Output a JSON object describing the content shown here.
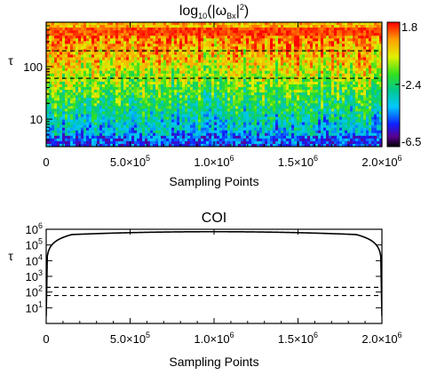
{
  "chart_data": [
    {
      "type": "heatmap",
      "title_prefix": "log",
      "title_sub": "10",
      "title_body": "(|ω",
      "title_body_sub": "Bx",
      "title_suffix": "|",
      "title_suffix_sup": "2",
      "title_close": ")",
      "xlabel": "Sampling Points",
      "ylabel": "τ",
      "xlim": [
        0,
        2000000
      ],
      "ylim": [
        3,
        700
      ],
      "yscale": "log",
      "x_ticks": [
        {
          "value": 0,
          "label": "0",
          "base": "",
          "exp": ""
        },
        {
          "value": 500000,
          "label": "",
          "base": "5.0×10",
          "exp": "5"
        },
        {
          "value": 1000000,
          "label": "",
          "base": "1.0×10",
          "exp": "6"
        },
        {
          "value": 1500000,
          "label": "",
          "base": "1.5×10",
          "exp": "6"
        },
        {
          "value": 2000000,
          "label": "",
          "base": "2.0×10",
          "exp": "6"
        }
      ],
      "y_ticks": [
        {
          "value": 10,
          "label": "10"
        },
        {
          "value": 100,
          "label": "100"
        }
      ],
      "colorbar": {
        "min": -6.5,
        "max": 1.8,
        "tick_labels": [
          "1.8",
          "-2.4",
          "-6.5"
        ]
      },
      "dashed_lines_tau": [
        60,
        200
      ]
    },
    {
      "type": "line",
      "title": "COI",
      "xlabel": "Sampling Points",
      "ylabel": "τ",
      "xlim": [
        0,
        2000000
      ],
      "ylim": [
        1,
        1000000
      ],
      "yscale": "log",
      "x_ticks": [
        {
          "value": 0,
          "label": "0",
          "base": "",
          "exp": ""
        },
        {
          "value": 500000,
          "label": "",
          "base": "5.0×10",
          "exp": "5"
        },
        {
          "value": 1000000,
          "label": "",
          "base": "1.0×10",
          "exp": "6"
        },
        {
          "value": 1500000,
          "label": "",
          "base": "1.5×10",
          "exp": "6"
        },
        {
          "value": 2000000,
          "label": "",
          "base": "2.0×10",
          "exp": "6"
        }
      ],
      "y_ticks": [
        {
          "value": 10,
          "base": "10",
          "exp": "1"
        },
        {
          "value": 100,
          "base": "10",
          "exp": "2"
        },
        {
          "value": 1000,
          "base": "10",
          "exp": "3"
        },
        {
          "value": 10000,
          "base": "10",
          "exp": "4"
        },
        {
          "value": 100000,
          "base": "10",
          "exp": "5"
        },
        {
          "value": 1000000,
          "base": "10",
          "exp": "6"
        }
      ],
      "coi_peak": 700000,
      "dashed_lines_tau": [
        60,
        200
      ]
    }
  ]
}
